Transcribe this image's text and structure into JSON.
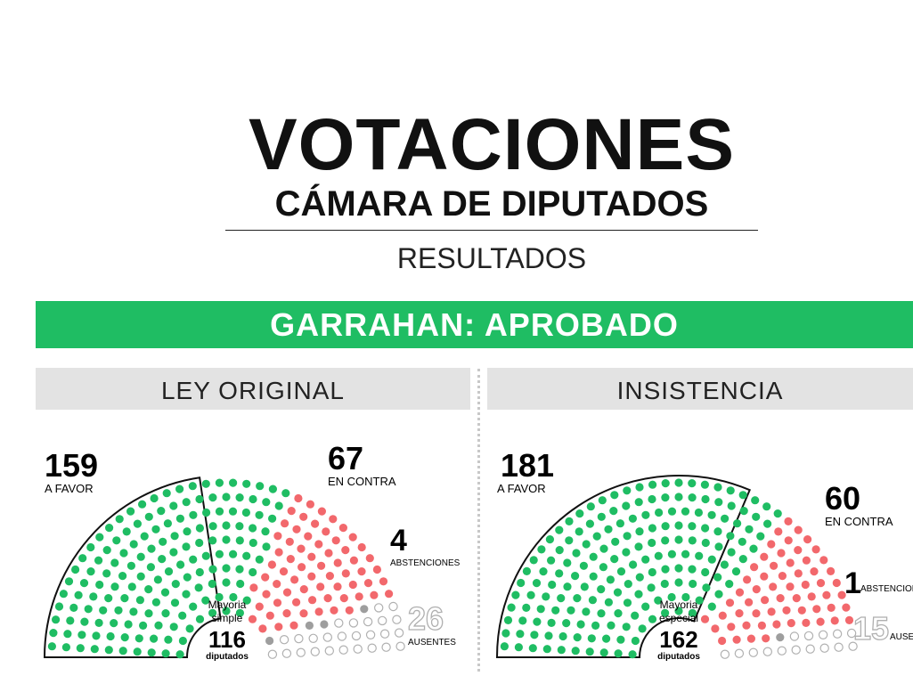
{
  "header": {
    "title": "VOTACIONES",
    "subtitle": "CÁMARA DE DIPUTADOS",
    "results": "RESULTADOS"
  },
  "banner": {
    "subject": "GARRAHAN:",
    "outcome": "APROBADO"
  },
  "colors": {
    "favor": "#1fbd63",
    "contra": "#f2686c",
    "abstenciones": "#9e9e9e",
    "ausentes_stroke": "#b0b0b0",
    "banner": "#1fbd63",
    "panel_header": "#e3e3e3"
  },
  "chart_data": [
    {
      "type": "parliament",
      "title": "LEY ORIGINAL",
      "total_seats": 256,
      "series": [
        {
          "name": "A FAVOR",
          "value": 159
        },
        {
          "name": "EN CONTRA",
          "value": 67
        },
        {
          "name": "ABSTENCIONES",
          "value": 4
        },
        {
          "name": "AUSENTES",
          "value": 26
        }
      ],
      "threshold": {
        "line1": "Mayoria",
        "line2": "simple",
        "value": 116,
        "unit": "diputados"
      }
    },
    {
      "type": "parliament",
      "title": "INSISTENCIA",
      "total_seats": 257,
      "series": [
        {
          "name": "A FAVOR",
          "value": 181
        },
        {
          "name": "EN CONTRA",
          "value": 60
        },
        {
          "name": "ABSTENCIONES",
          "value": 1
        },
        {
          "name": "AUSENTES",
          "value": 15
        }
      ],
      "threshold": {
        "line1": "Mayoria",
        "line2": "especial",
        "value": 162,
        "unit": "diputados"
      }
    }
  ]
}
